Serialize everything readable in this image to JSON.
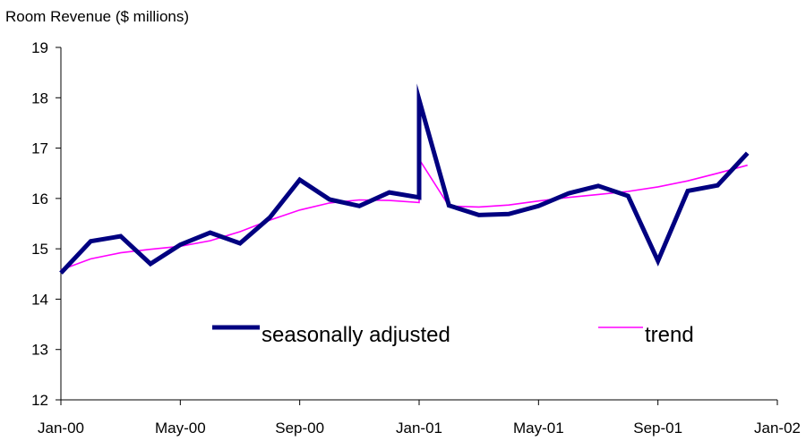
{
  "chart_data": {
    "type": "line",
    "title": "",
    "ylabel": "Room Revenue ($ millions)",
    "xlabel": "",
    "ylim": [
      12,
      19
    ],
    "yticks": [
      12,
      13,
      14,
      15,
      16,
      17,
      18,
      19
    ],
    "xlim": [
      "2000-01",
      "2002-01"
    ],
    "xticks": [
      {
        "at": "2000-01",
        "label": "Jan-00"
      },
      {
        "at": "2000-05",
        "label": "May-00"
      },
      {
        "at": "2000-09",
        "label": "Sep-00"
      },
      {
        "at": "2001-01",
        "label": "Jan-01"
      },
      {
        "at": "2001-05",
        "label": "May-01"
      },
      {
        "at": "2001-09",
        "label": "Sep-01"
      },
      {
        "at": "2002-01",
        "label": "Jan-02"
      }
    ],
    "x": [
      "2000-01",
      "2000-02",
      "2000-03",
      "2000-04",
      "2000-05",
      "2000-06",
      "2000-07",
      "2000-08",
      "2000-09",
      "2000-10",
      "2000-11",
      "2000-12",
      "2001-01",
      "2001-01",
      "2001-02",
      "2001-03",
      "2001-04",
      "2001-05",
      "2001-06",
      "2001-07",
      "2001-08",
      "2001-09",
      "2001-10",
      "2001-11",
      "2001-12"
    ],
    "series": [
      {
        "name": "seasonally adjusted",
        "color": "#000080",
        "values": [
          14.52,
          15.15,
          15.25,
          14.7,
          15.08,
          15.32,
          15.11,
          15.62,
          16.37,
          15.98,
          15.85,
          16.12,
          16.02,
          17.96,
          15.86,
          15.67,
          15.69,
          15.85,
          16.1,
          16.25,
          16.05,
          14.76,
          16.15,
          16.26,
          16.9
        ]
      },
      {
        "name": "trend",
        "color": "#ff00ff",
        "values": [
          14.58,
          14.8,
          14.92,
          14.99,
          15.05,
          15.16,
          15.34,
          15.57,
          15.77,
          15.91,
          15.97,
          15.96,
          15.92,
          16.78,
          15.85,
          15.83,
          15.87,
          15.95,
          16.02,
          16.08,
          16.14,
          16.23,
          16.35,
          16.5,
          16.66
        ]
      }
    ],
    "grid": false,
    "legend": "inside-bottom"
  }
}
